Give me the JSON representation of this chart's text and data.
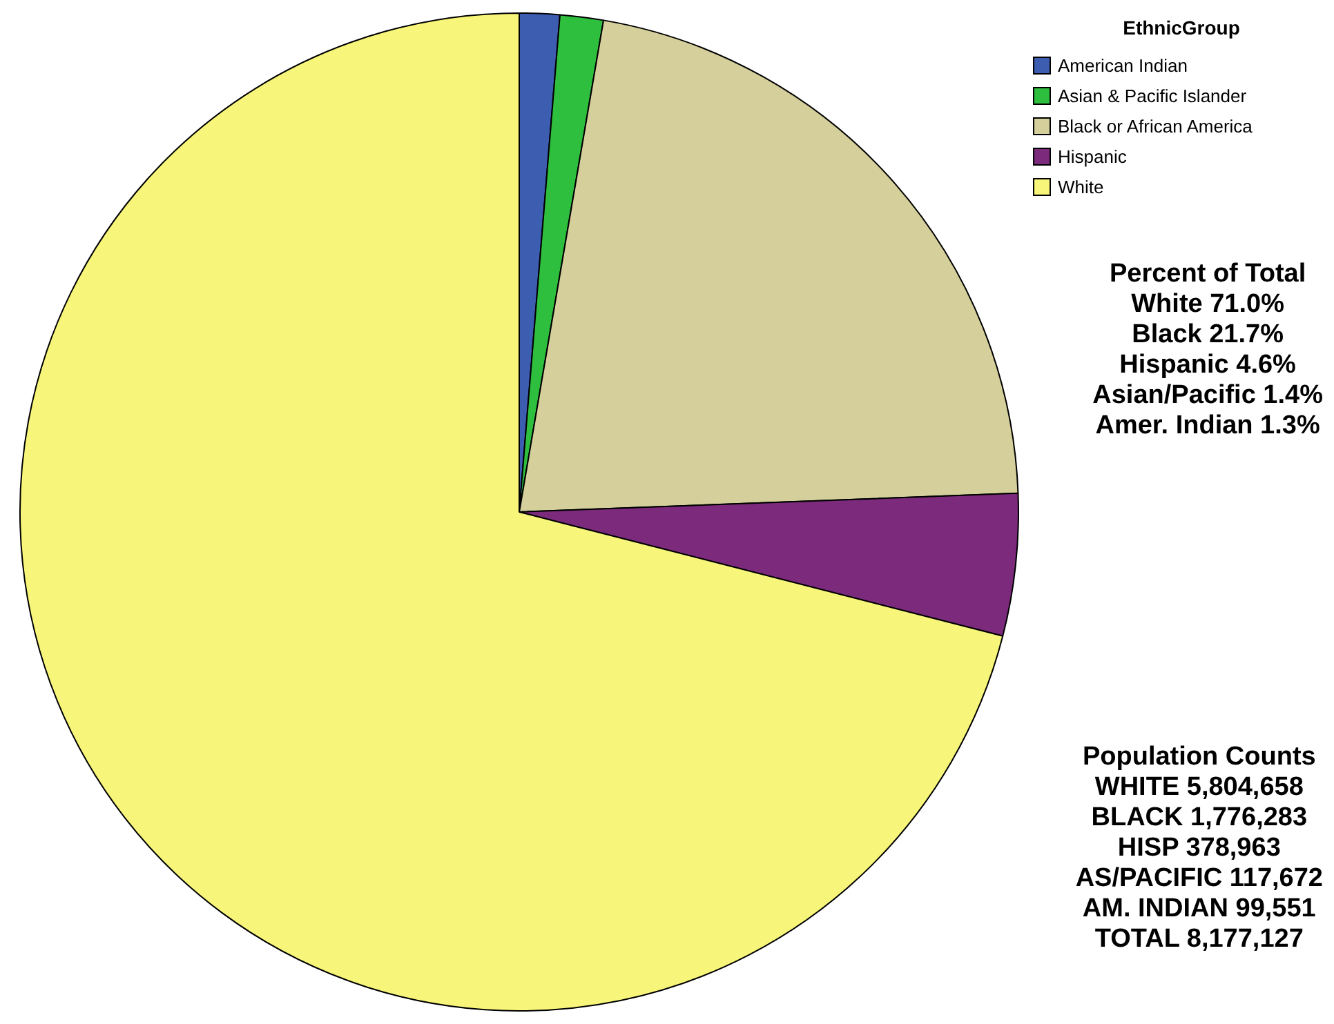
{
  "chart_data": {
    "type": "pie",
    "legend_title": "EthnicGroup",
    "legend": "top right",
    "categories": [
      "American Indian",
      "Asian & Pacific Islander",
      "Black or African America",
      "Hispanic",
      "White"
    ],
    "values": [
      1.3,
      1.4,
      21.7,
      4.6,
      71.0
    ],
    "colors": [
      "#3d5db0",
      "#2fbf3f",
      "#d4cf9b",
      "#7b2a7c",
      "#f8f67a"
    ],
    "annotations": [
      "Percent of Total\nWhite 71.0%\nBlack 21.7%\nHispanic 4.6%\nAsian/Pacific 1.4%\nAmer. Indian 1.3%",
      "Population Counts\nWHITE 5,804,658\nBLACK 1,776,283\nHISP 378,963\nAS/PACIFIC 117,672\nAM. INDIAN 99,551\nTOTAL 8,177,127"
    ]
  }
}
